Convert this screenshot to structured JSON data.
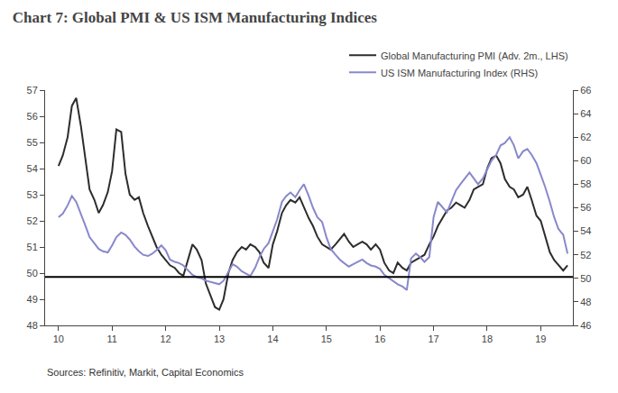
{
  "chart_data": {
    "type": "line",
    "title": "Chart 7: Global PMI & US ISM Manufacturing Indices",
    "annotations": [
      "Sources: Refinitiv, Markit, Capital Economics"
    ],
    "x": [
      10.0,
      10.08,
      10.17,
      10.25,
      10.33,
      10.42,
      10.5,
      10.58,
      10.67,
      10.75,
      10.83,
      10.92,
      11.0,
      11.08,
      11.17,
      11.25,
      11.33,
      11.42,
      11.5,
      11.58,
      11.67,
      11.75,
      11.83,
      11.92,
      12.0,
      12.08,
      12.17,
      12.25,
      12.33,
      12.42,
      12.5,
      12.58,
      12.67,
      12.75,
      12.83,
      12.92,
      13.0,
      13.08,
      13.17,
      13.25,
      13.33,
      13.42,
      13.5,
      13.58,
      13.67,
      13.75,
      13.83,
      13.92,
      14.0,
      14.08,
      14.17,
      14.25,
      14.33,
      14.42,
      14.5,
      14.58,
      14.67,
      14.75,
      14.83,
      14.92,
      15.0,
      15.08,
      15.17,
      15.25,
      15.33,
      15.42,
      15.5,
      15.58,
      15.67,
      15.75,
      15.83,
      15.92,
      16.0,
      16.08,
      16.17,
      16.25,
      16.33,
      16.42,
      16.5,
      16.58,
      16.67,
      16.75,
      16.83,
      16.92,
      17.0,
      17.08,
      17.17,
      17.25,
      17.33,
      17.42,
      17.5,
      17.58,
      17.67,
      17.75,
      17.83,
      17.92,
      18.0,
      18.08,
      18.17,
      18.25,
      18.33,
      18.42,
      18.5,
      18.58,
      18.67,
      18.75,
      18.83,
      18.92,
      19.0,
      19.08,
      19.17,
      19.25,
      19.33,
      19.42,
      19.5
    ],
    "series": [
      {
        "name": "Global Manufacturing PMI (Adv. 2m., LHS)",
        "color": "#2d2d2d",
        "values": [
          54.1,
          54.5,
          55.2,
          56.4,
          56.7,
          55.6,
          54.4,
          53.2,
          52.8,
          52.3,
          52.6,
          53.1,
          53.9,
          55.5,
          55.4,
          53.8,
          53.0,
          52.8,
          52.9,
          52.3,
          51.8,
          51.4,
          51.0,
          50.7,
          50.5,
          50.3,
          50.2,
          50.0,
          49.9,
          50.5,
          51.1,
          50.9,
          50.5,
          49.6,
          49.2,
          48.7,
          48.6,
          49.0,
          50.0,
          50.5,
          50.8,
          51.0,
          50.9,
          51.1,
          51.0,
          50.8,
          50.4,
          50.2,
          51.1,
          51.6,
          52.3,
          52.6,
          52.8,
          52.7,
          52.9,
          52.5,
          52.1,
          51.8,
          51.4,
          51.1,
          51.0,
          50.9,
          51.1,
          51.3,
          51.5,
          51.2,
          51.0,
          51.1,
          51.2,
          51.1,
          50.9,
          51.1,
          50.9,
          50.4,
          50.1,
          50.0,
          50.4,
          50.2,
          50.1,
          50.4,
          50.5,
          50.6,
          50.7,
          51.1,
          51.4,
          51.8,
          52.1,
          52.4,
          52.5,
          52.7,
          52.6,
          52.5,
          52.8,
          53.2,
          53.3,
          53.4,
          54.0,
          54.4,
          54.5,
          54.2,
          53.6,
          53.3,
          53.2,
          52.9,
          53.0,
          53.3,
          52.8,
          52.2,
          52.0,
          51.4,
          50.8,
          50.5,
          50.3,
          50.1,
          50.3
        ]
      },
      {
        "name": "US ISM Manufacturing Index (RHS)",
        "color": "#8888cc",
        "axis": "y2",
        "values": [
          55.2,
          55.5,
          56.2,
          57.0,
          56.5,
          55.5,
          54.5,
          53.5,
          53.0,
          52.5,
          52.3,
          52.2,
          52.8,
          53.5,
          53.9,
          53.7,
          53.3,
          52.7,
          52.3,
          52.0,
          51.9,
          52.1,
          52.4,
          52.8,
          52.4,
          51.6,
          51.4,
          51.3,
          51.1,
          50.7,
          50.3,
          50.1,
          50.0,
          49.8,
          49.7,
          49.6,
          49.5,
          49.8,
          50.6,
          51.2,
          51.0,
          50.6,
          50.4,
          50.2,
          50.9,
          51.8,
          52.5,
          53.0,
          54.0,
          55.0,
          56.5,
          57.0,
          57.3,
          56.9,
          57.5,
          58.0,
          57.0,
          56.0,
          55.2,
          54.8,
          53.5,
          52.5,
          52.0,
          51.6,
          51.3,
          51.0,
          51.2,
          51.4,
          51.6,
          51.3,
          51.1,
          51.0,
          50.8,
          50.3,
          50.0,
          49.7,
          49.5,
          49.3,
          49.0,
          51.7,
          52.1,
          51.8,
          51.4,
          51.8,
          55.2,
          56.5,
          56.0,
          55.6,
          56.5,
          57.5,
          58.0,
          58.5,
          59.0,
          58.5,
          58.0,
          58.5,
          59.2,
          60.0,
          60.5,
          61.3,
          61.5,
          62.0,
          61.3,
          60.2,
          60.8,
          61.0,
          60.5,
          59.8,
          58.8,
          57.8,
          56.5,
          55.2,
          54.2,
          53.7,
          52.1
        ]
      }
    ],
    "xlim": [
      9.75,
      19.6
    ],
    "xticks": [
      10,
      11,
      12,
      13,
      14,
      15,
      16,
      17,
      18,
      19
    ],
    "ylim": [
      48,
      57
    ],
    "yticks": [
      48,
      49,
      50,
      51,
      52,
      53,
      54,
      55,
      56,
      57
    ],
    "y2lim": [
      46,
      66
    ],
    "y2ticks": [
      46,
      48,
      50,
      52,
      54,
      56,
      58,
      60,
      62,
      64,
      66
    ],
    "hline": {
      "y": 49.85,
      "color": "black"
    },
    "grid": false,
    "legend": "top right"
  }
}
